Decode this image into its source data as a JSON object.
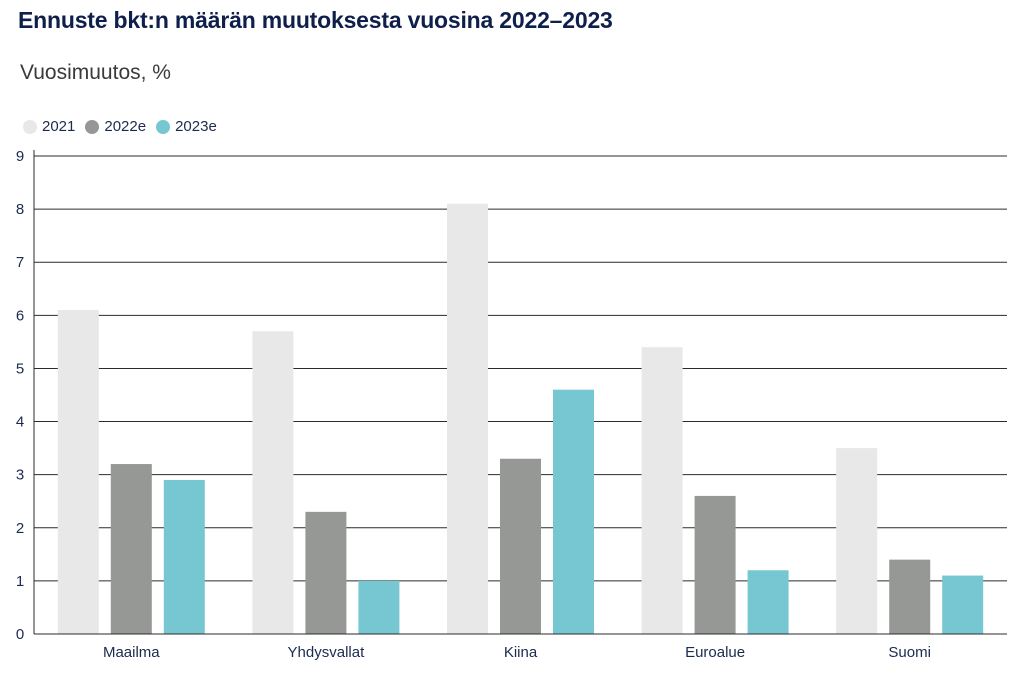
{
  "title": "Ennuste bkt:n määrän muutoksesta vuosina 2022–2023",
  "subtitle": "Vuosimuutos, %",
  "chart_data": {
    "type": "bar",
    "categories": [
      "Maailma",
      "Yhdysvallat",
      "Kiina",
      "Euroalue",
      "Suomi"
    ],
    "series": [
      {
        "name": "2021",
        "color": "#e8e8e8",
        "values": [
          6.1,
          5.7,
          8.1,
          5.4,
          3.5
        ]
      },
      {
        "name": "2022e",
        "color": "#969895",
        "values": [
          3.2,
          2.3,
          3.3,
          2.6,
          1.4
        ]
      },
      {
        "name": "2023e",
        "color": "#76c7d1",
        "values": [
          2.9,
          1.0,
          4.6,
          1.2,
          1.1
        ]
      }
    ],
    "ylim": [
      0,
      9
    ],
    "yticks": [
      0,
      1,
      2,
      3,
      4,
      5,
      6,
      7,
      8,
      9
    ],
    "xlabel": "",
    "ylabel": "",
    "grid": true,
    "legend_position": "top-left"
  }
}
